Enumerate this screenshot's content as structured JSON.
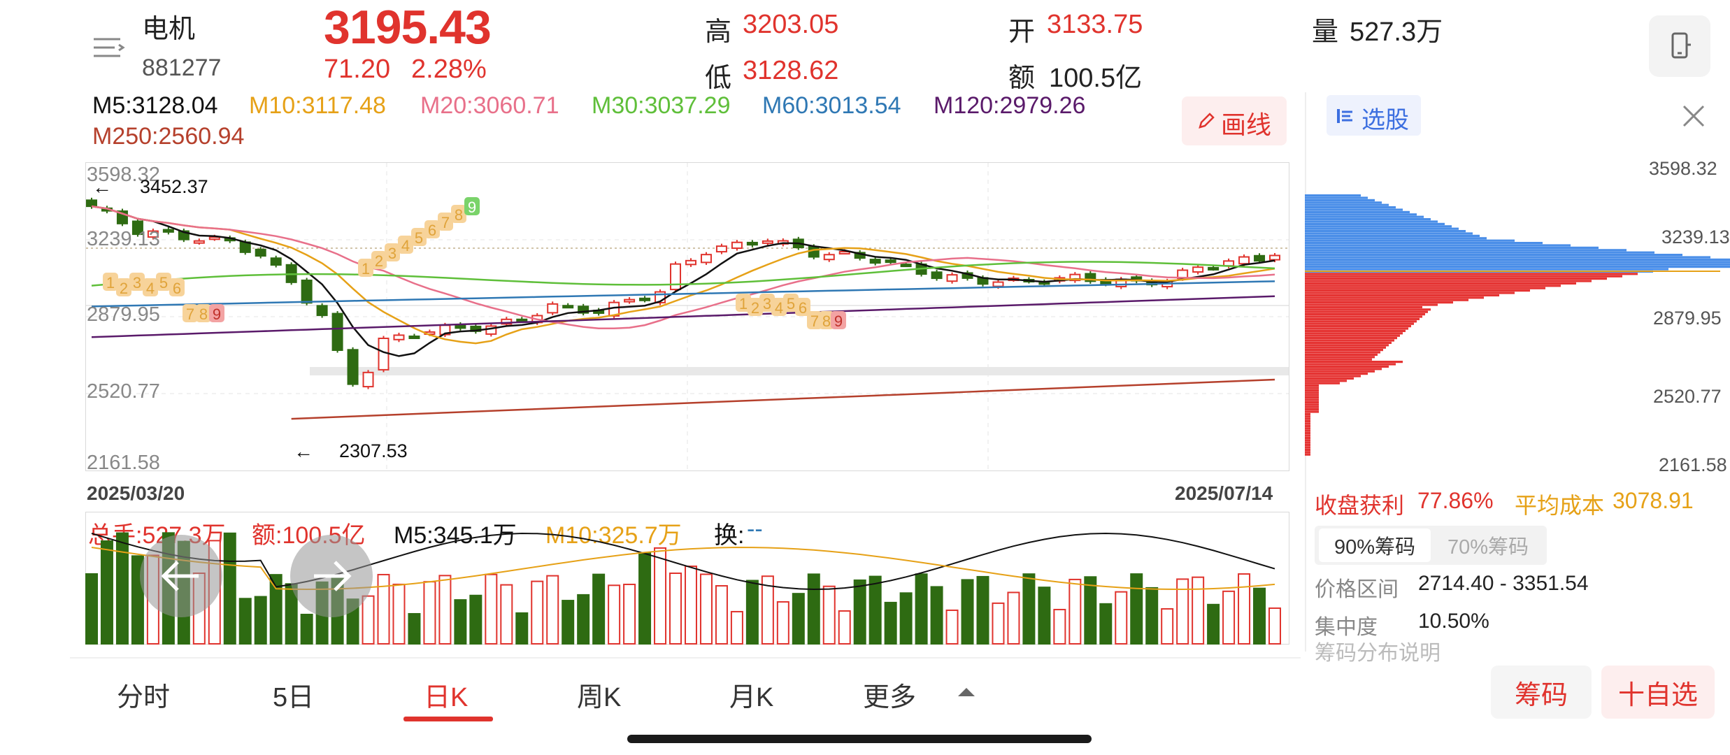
{
  "header": {
    "stock_name": "电机",
    "stock_code": "881277",
    "price": "3195.43",
    "change": "71.20",
    "change_pct": "2.28%",
    "high_label": "高",
    "high_value": "3203.05",
    "low_label": "低",
    "low_value": "3128.62",
    "open_label": "开",
    "open_value": "3133.75",
    "amount_label": "额",
    "amount_value": "100.5亿",
    "volume_label": "量",
    "volume_value": "527.3万"
  },
  "ma": {
    "m5": "M5:3128.04",
    "m10": "M10:3117.48",
    "m20": "M20:3060.71",
    "m30": "M30:3037.29",
    "m60": "M60:3013.54",
    "m120": "M120:2979.26",
    "m250": "M250:2560.94"
  },
  "colors": {
    "up": "#e0332d",
    "down": "#2e6b12",
    "m5": "#111111",
    "m10": "#e6a117",
    "m20": "#e8708a",
    "m30": "#5fbf3a",
    "m60": "#2f78b4",
    "m120": "#5a1a6a",
    "m250": "#b5402c"
  },
  "draw_button": "画线",
  "chart": {
    "y_labels": [
      "3598.32",
      "3239.13",
      "2879.95",
      "2520.77",
      "2161.58"
    ],
    "date_start": "2025/03/20",
    "date_end": "2025/07/14",
    "high_marker": "3452.37",
    "low_marker": "2307.53",
    "td_seq_top": [
      "1",
      "2",
      "3",
      "4",
      "5",
      "6",
      "7",
      "8",
      "9"
    ],
    "td_seq_left": [
      "1",
      "2",
      "3",
      "4",
      "5",
      "6",
      "7",
      "8",
      "9"
    ],
    "td_seq_mid": [
      "1",
      "2",
      "3",
      "4",
      "5",
      "6",
      "7",
      "8",
      "9"
    ]
  },
  "volume": {
    "total": "总手:527.3万",
    "amount": "额:100.5亿",
    "m5": "M5:345.1万",
    "m10": "M10:325.7万",
    "turnover": "换:",
    "turnover_val": "--"
  },
  "chip_panel": {
    "pick_label": "选股",
    "close_icon": "close-icon",
    "y_labels": [
      "3598.32",
      "3239.13",
      "2879.95",
      "2520.77",
      "2161.58"
    ],
    "profit_label": "收盘获利",
    "profit_value": "77.86%",
    "avg_cost_label": "平均成本",
    "avg_cost_value": "3078.91",
    "tab_90": "90%筹码",
    "tab_70": "70%筹码",
    "range_label": "价格区间",
    "range_value": "2714.40 - 3351.54",
    "conc_label": "集中度",
    "conc_value": "10.50%",
    "desc_label": "筹码分布说明"
  },
  "tabs": [
    "分时",
    "5日",
    "日K",
    "周K",
    "月K",
    "更多"
  ],
  "active_tab": "日K",
  "bottom_buttons": {
    "chips": "筹码",
    "watchlist": "十自选"
  }
}
